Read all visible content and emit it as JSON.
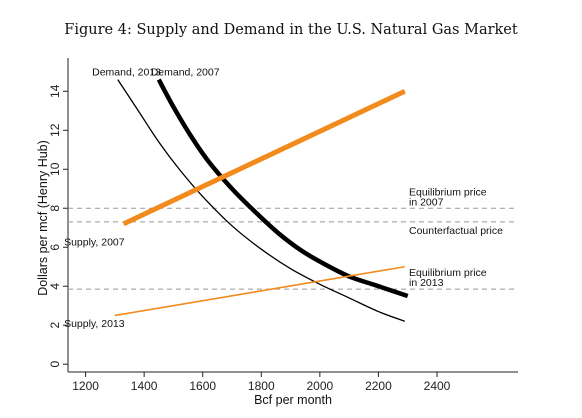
{
  "figure_title": "Figure 4: Supply and Demand in the U.S. Natural Gas Market",
  "colors": {
    "supply": "#f28a1c",
    "demand": "#000000",
    "reference": "#9a9a9a",
    "axis": "#222222"
  },
  "chart_data": {
    "type": "line",
    "title": "Figure 4: Supply and Demand in the U.S. Natural Gas Market",
    "xlabel": "Bcf per month",
    "ylabel": "Dollars per mcf (Henry Hub)",
    "xlim": [
      1140,
      2540
    ],
    "ylim": [
      -0.4,
      15.4
    ],
    "x_ticks": [
      1200,
      1400,
      1600,
      1800,
      2000,
      2200,
      2400
    ],
    "y_ticks": [
      0,
      2,
      4,
      6,
      8,
      10,
      12,
      14
    ],
    "grid": false,
    "series": [
      {
        "name": "Demand, 2013",
        "style": "demand-thin",
        "x": [
          1310,
          1380,
          1450,
          1520,
          1600,
          1700,
          1800,
          1900,
          2000,
          2100,
          2200,
          2290
        ],
        "y": [
          14.6,
          13.0,
          11.4,
          10.0,
          8.6,
          7.1,
          5.9,
          4.9,
          4.1,
          3.4,
          2.7,
          2.2
        ]
      },
      {
        "name": "Demand, 2007",
        "style": "demand-thick",
        "x": [
          1450,
          1500,
          1560,
          1620,
          1700,
          1780,
          1860,
          1940,
          2020,
          2100,
          2180,
          2300
        ],
        "y": [
          14.6,
          13.2,
          11.7,
          10.4,
          9.0,
          7.8,
          6.7,
          5.8,
          5.1,
          4.5,
          4.1,
          3.5
        ]
      },
      {
        "name": "Supply, 2007",
        "style": "supply-thick",
        "x": [
          1330,
          2290
        ],
        "y": [
          7.2,
          14.0
        ]
      },
      {
        "name": "Supply, 2013",
        "style": "supply-thin",
        "x": [
          1300,
          2290
        ],
        "y": [
          2.5,
          5.0
        ]
      }
    ],
    "reference_lines": [
      {
        "y": 8.0,
        "label": "Equilibrium price in 2007",
        "lines": [
          "Equilibrium price",
          "in 2007"
        ]
      },
      {
        "y": 7.3,
        "label": "Counterfactual price",
        "lines": [
          "Counterfactual price"
        ]
      },
      {
        "y": 3.85,
        "label": "Equilibrium price in 2013",
        "lines": [
          "Equilibrium price",
          "in 2013"
        ]
      }
    ],
    "annotations": [
      {
        "text": "Demand, 2013",
        "x": 1340,
        "y": 14.8
      },
      {
        "text": "Demand, 2007",
        "x": 1540,
        "y": 14.8
      },
      {
        "text": "Supply, 2007",
        "x": 1230,
        "y": 6.1
      },
      {
        "text": "Supply, 2013",
        "x": 1230,
        "y": 1.9
      }
    ]
  }
}
